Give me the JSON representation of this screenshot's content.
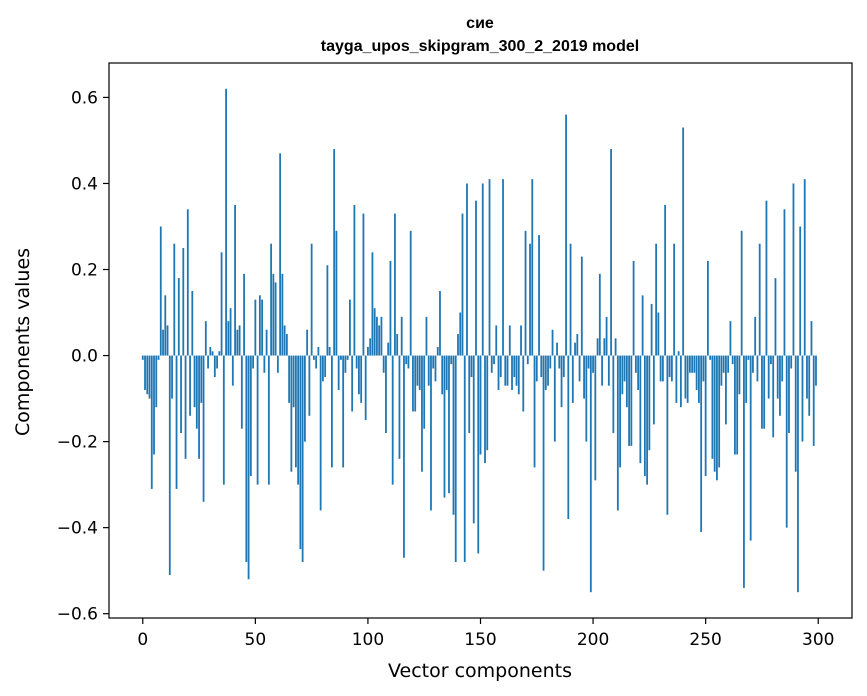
{
  "chart_data": {
    "type": "bar",
    "title_line1": "сие",
    "title_line2": "tayga_upos_skipgram_300_2_2019 model",
    "xlabel": "Vector components",
    "ylabel": "Components values",
    "xlim": [
      -15,
      315
    ],
    "ylim": [
      -0.61,
      0.68
    ],
    "xticks": [
      0,
      50,
      100,
      150,
      200,
      250,
      300
    ],
    "xtick_labels": [
      "0",
      "50",
      "100",
      "150",
      "200",
      "250",
      "300"
    ],
    "yticks": [
      -0.6,
      -0.4,
      -0.2,
      0.0,
      0.2,
      0.4,
      0.6
    ],
    "ytick_labels": [
      "−0.6",
      "−0.4",
      "−0.2",
      "0.0",
      "0.2",
      "0.4",
      "0.6"
    ],
    "bar_color": "#1f77b4",
    "grid": false,
    "x_start": 0,
    "values": [
      -0.01,
      -0.08,
      -0.09,
      -0.1,
      -0.31,
      -0.23,
      -0.12,
      -0.01,
      0.3,
      0.06,
      0.14,
      0.07,
      -0.51,
      -0.1,
      0.26,
      -0.31,
      0.18,
      -0.18,
      0.25,
      -0.24,
      0.34,
      -0.14,
      0.15,
      -0.12,
      -0.17,
      -0.24,
      -0.11,
      -0.34,
      0.08,
      -0.03,
      0.02,
      0.01,
      -0.05,
      -0.03,
      0.01,
      0.24,
      -0.3,
      0.62,
      0.08,
      0.11,
      -0.07,
      0.35,
      0.06,
      0.07,
      -0.17,
      0.19,
      -0.48,
      -0.52,
      -0.28,
      -0.03,
      0.13,
      -0.3,
      0.14,
      0.13,
      -0.04,
      0.06,
      -0.3,
      0.26,
      0.19,
      0.17,
      -0.04,
      0.47,
      0.19,
      0.07,
      0.05,
      -0.11,
      -0.27,
      -0.12,
      -0.26,
      -0.3,
      -0.45,
      -0.48,
      -0.2,
      0.06,
      -0.14,
      0.26,
      -0.01,
      -0.03,
      0.02,
      -0.36,
      -0.06,
      -0.05,
      0.21,
      0.02,
      -0.26,
      0.48,
      0.29,
      -0.08,
      -0.01,
      -0.26,
      -0.04,
      -0.01,
      0.13,
      -0.13,
      0.35,
      -0.03,
      -0.09,
      -0.11,
      0.33,
      -0.15,
      0.02,
      0.04,
      0.24,
      0.11,
      0.09,
      0.07,
      0.09,
      -0.04,
      -0.18,
      0.03,
      0.22,
      -0.3,
      0.33,
      0.05,
      -0.24,
      0.09,
      -0.47,
      -0.02,
      -0.03,
      0.29,
      -0.13,
      -0.13,
      -0.07,
      -0.08,
      -0.27,
      -0.17,
      0.09,
      -0.07,
      -0.36,
      -0.03,
      -0.06,
      0.02,
      0.15,
      -0.09,
      -0.33,
      -0.08,
      -0.32,
      -0.02,
      -0.37,
      -0.48,
      0.05,
      0.1,
      0.33,
      -0.48,
      0.4,
      -0.18,
      -0.05,
      -0.39,
      0.36,
      -0.46,
      -0.23,
      0.4,
      -0.25,
      -0.22,
      0.41,
      -0.04,
      -0.02,
      0.07,
      -0.08,
      -0.05,
      0.41,
      -0.07,
      -0.07,
      0.07,
      -0.08,
      -0.05,
      -0.07,
      -0.09,
      0.07,
      -0.13,
      0.29,
      -0.02,
      0.26,
      0.41,
      -0.26,
      -0.06,
      0.28,
      -0.05,
      -0.5,
      -0.08,
      -0.07,
      -0.03,
      0.06,
      -0.2,
      0.03,
      -0.03,
      -0.12,
      -0.05,
      0.56,
      -0.38,
      0.26,
      -0.11,
      0.03,
      0.05,
      -0.06,
      0.23,
      -0.1,
      -0.2,
      -0.03,
      -0.55,
      -0.04,
      -0.29,
      0.04,
      0.19,
      -0.07,
      0.04,
      0.09,
      -0.07,
      0.48,
      -0.18,
      0.04,
      -0.36,
      -0.26,
      -0.09,
      -0.06,
      -0.12,
      -0.21,
      -0.21,
      0.22,
      -0.04,
      -0.08,
      -0.25,
      0.14,
      -0.28,
      -0.3,
      -0.22,
      0.12,
      -0.16,
      0.26,
      0.1,
      -0.06,
      -0.06,
      0.35,
      -0.37,
      -0.05,
      -0.06,
      0.26,
      -0.11,
      0.01,
      -0.12,
      0.53,
      -0.1,
      -0.11,
      -0.04,
      -0.04,
      -0.04,
      -0.08,
      -0.11,
      -0.41,
      -0.06,
      -0.28,
      0.22,
      -0.01,
      -0.24,
      -0.27,
      -0.29,
      -0.26,
      -0.07,
      -0.04,
      -0.16,
      -0.04,
      0.08,
      -0.02,
      -0.23,
      -0.23,
      -0.09,
      0.29,
      -0.54,
      -0.11,
      -0.01,
      -0.43,
      -0.04,
      0.09,
      -0.06,
      0.26,
      -0.17,
      -0.17,
      0.36,
      -0.1,
      -0.02,
      -0.19,
      0.18,
      -0.1,
      -0.14,
      -0.06,
      0.34,
      -0.4,
      -0.18,
      -0.03,
      0.4,
      -0.27,
      -0.55,
      0.3,
      -0.2,
      0.41,
      -0.1,
      -0.14,
      0.08,
      -0.21,
      -0.07
    ]
  }
}
